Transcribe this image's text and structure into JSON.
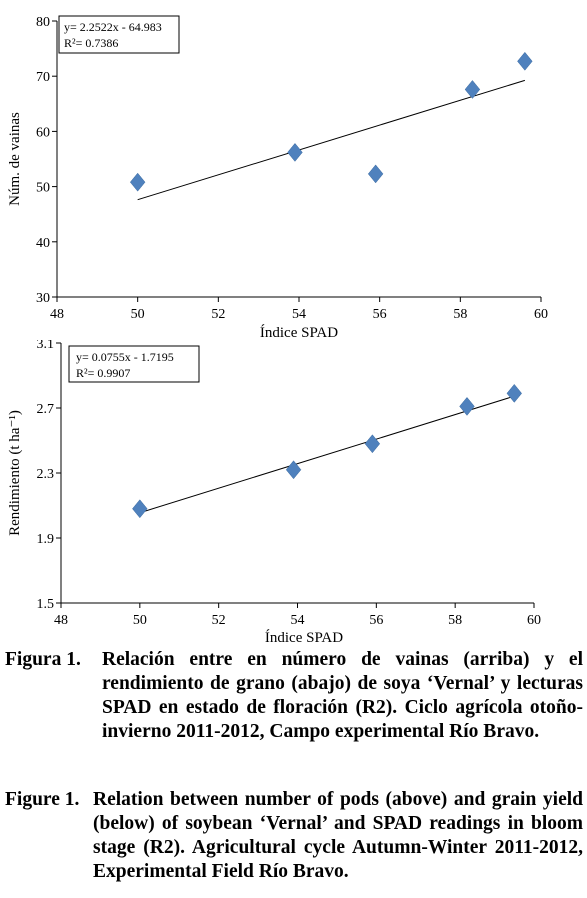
{
  "chart_data": [
    {
      "type": "scatter",
      "xlabel": "Índice SPAD",
      "ylabel": "Núm. de vainas",
      "xlim": [
        48,
        60
      ],
      "ylim": [
        30,
        80
      ],
      "xticks": [
        "48",
        "50",
        "52",
        "54",
        "56",
        "58",
        "60"
      ],
      "yticks": [
        "30",
        "40",
        "50",
        "60",
        "70",
        "80"
      ],
      "points": [
        {
          "x": 50.0,
          "y": 50.8
        },
        {
          "x": 53.9,
          "y": 56.2
        },
        {
          "x": 55.9,
          "y": 52.3
        },
        {
          "x": 58.3,
          "y": 67.6
        },
        {
          "x": 59.6,
          "y": 72.7
        }
      ],
      "trendline": {
        "slope": 2.2522,
        "intercept": -64.983,
        "x_range": [
          50.0,
          59.6
        ]
      },
      "equation": "y= 2.2522x - 64.983",
      "r2_label": "R²= 0.7386",
      "grid": false,
      "marker_color": "#4f81bd"
    },
    {
      "type": "scatter",
      "xlabel": "Índice SPAD",
      "ylabel": "Rendimiento (t ha⁻¹)",
      "xlim": [
        48,
        60
      ],
      "ylim": [
        1.5,
        3.1
      ],
      "xticks": [
        "48",
        "50",
        "52",
        "54",
        "56",
        "58",
        "60"
      ],
      "yticks": [
        "1.5",
        "1.9",
        "2.3",
        "2.7",
        "3.1"
      ],
      "points": [
        {
          "x": 50.0,
          "y": 2.08
        },
        {
          "x": 53.9,
          "y": 2.32
        },
        {
          "x": 55.9,
          "y": 2.48
        },
        {
          "x": 58.3,
          "y": 2.71
        },
        {
          "x": 59.5,
          "y": 2.79
        }
      ],
      "trendline": {
        "slope": 0.0755,
        "intercept": -1.7195,
        "x_range": [
          50.0,
          59.5
        ]
      },
      "equation": "y= 0.0755x - 1.7195",
      "r2_label": "R²= 0.9907",
      "grid": false,
      "marker_color": "#4f81bd"
    }
  ],
  "caption_es": {
    "lead": "Figura 1.",
    "text": "Relación entre en número de vainas (arriba) y el rendimiento de grano (abajo) de soya ‘Vernal’ y lecturas SPAD en estado de floración (R2). Ciclo agrícola otoño-invierno 2011-2012, Campo experimental Río Bravo."
  },
  "caption_en": {
    "lead": "Figure 1.",
    "text": "Relation between number of pods (above) and grain yield (below) of soybean ‘Vernal’ and SPAD readings in bloom stage (R2). Agricultural cycle Autumn-Winter 2011-2012, Experimental Field Río Bravo."
  }
}
